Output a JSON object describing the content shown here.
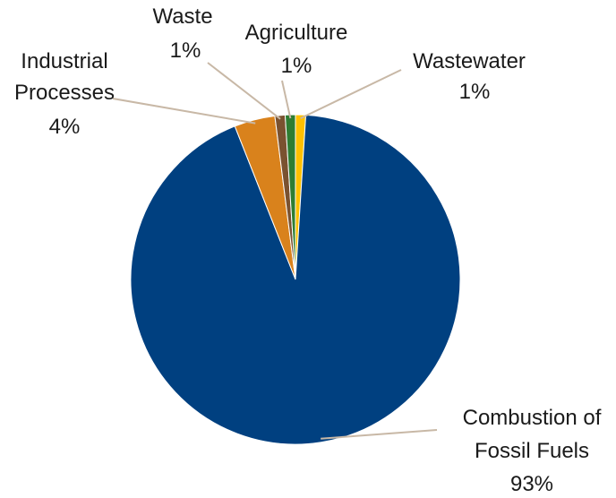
{
  "chart_data": {
    "type": "pie",
    "title": "",
    "slices": [
      {
        "label": "Wastewater",
        "pct_text": "1%",
        "value": 1,
        "color": "#FFC000"
      },
      {
        "label": "Combustion of Fossil Fuels",
        "label_lines": [
          "Combustion of",
          "Fossil Fuels"
        ],
        "pct_text": "93%",
        "value": 93,
        "color": "#004080"
      },
      {
        "label": "Industrial Processes",
        "label_lines": [
          "Industrial",
          "Processes"
        ],
        "pct_text": "4%",
        "value": 4,
        "color": "#D9821C"
      },
      {
        "label": "Waste",
        "pct_text": "1%",
        "value": 1,
        "color": "#7A5230"
      },
      {
        "label": "Agriculture",
        "pct_text": "1%",
        "value": 1,
        "color": "#2E7D32"
      }
    ],
    "start_angle_deg": 0,
    "direction": "clockwise",
    "legend": "none",
    "leader_line_color": "#C8B8A6"
  }
}
